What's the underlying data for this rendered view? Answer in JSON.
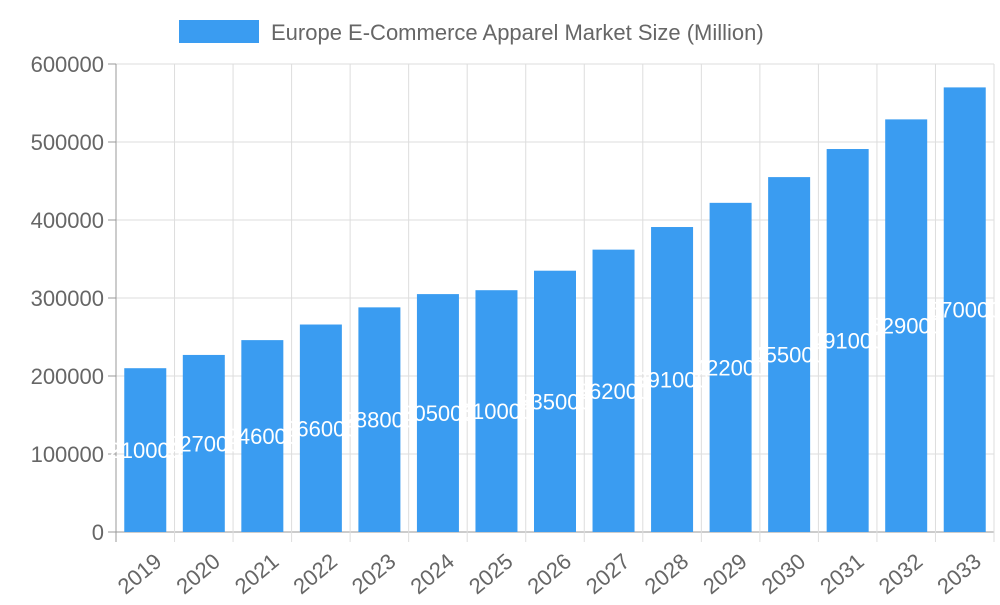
{
  "chart_data": {
    "type": "bar",
    "title": "",
    "xlabel": "",
    "ylabel": "",
    "legend": {
      "position": "top",
      "entries": [
        "Europe E-Commerce Apparel Market Size (Million)"
      ]
    },
    "categories": [
      "2019",
      "2020",
      "2021",
      "2022",
      "2023",
      "2024",
      "2025",
      "2026",
      "2027",
      "2028",
      "2029",
      "2030",
      "2031",
      "2032",
      "2033"
    ],
    "series": [
      {
        "name": "Europe E-Commerce Apparel Market Size (Million)",
        "values": [
          210000,
          227000,
          246000,
          266000,
          288000,
          305000,
          310000,
          335000,
          362000,
          391000,
          422000,
          455000,
          491000,
          529000,
          570000
        ],
        "color": "#3a9cf1"
      }
    ],
    "ylim": [
      0,
      600000
    ],
    "yticks": [
      "0",
      "100000",
      "200000",
      "300000",
      "400000",
      "500000",
      "600000"
    ],
    "grid": true,
    "data_labels": true
  }
}
